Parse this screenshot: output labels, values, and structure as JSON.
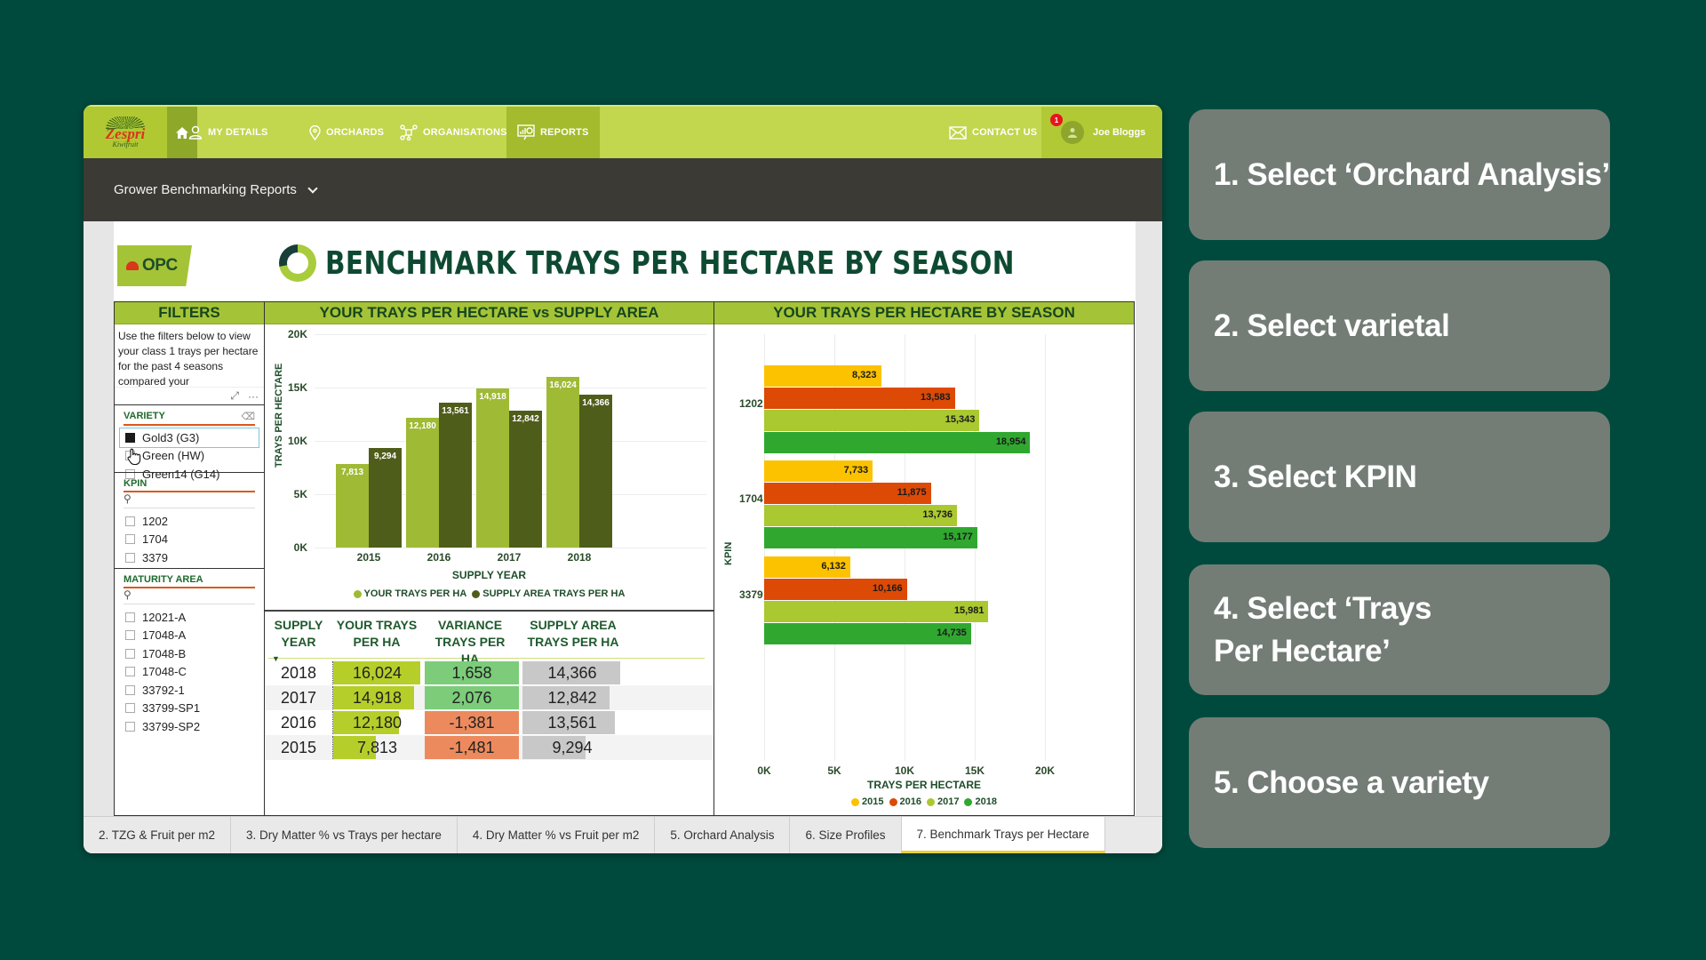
{
  "nav": {
    "logo_text": "Zespri",
    "logo_sub": "Kiwifruit",
    "items": [
      {
        "label": "MY DETAILS",
        "icon": "user-icon"
      },
      {
        "label": "ORCHARDS",
        "icon": "map-pin-icon"
      },
      {
        "label": "ORGANISATIONS",
        "icon": "network-icon"
      },
      {
        "label": "REPORTS",
        "icon": "report-chart-icon",
        "active": true
      }
    ],
    "contact_label": "CONTACT US",
    "user_name": "Joe Bloggs",
    "notification_count": "1"
  },
  "subheader": {
    "title": "Grower Benchmarking Reports"
  },
  "report": {
    "logo_text": "OPC",
    "title": "BENCHMARK TRAYS PER HECTARE BY SEASON",
    "filters": {
      "heading": "FILTERS",
      "description": "Use the filters below to view your class 1 trays per hectare for the past 4 seasons compared your",
      "variety": {
        "title": "VARIETY",
        "options": [
          {
            "label": "Gold3 (G3)",
            "checked": true
          },
          {
            "label": "Green (HW)",
            "checked": false
          },
          {
            "label": "Green14 (G14)",
            "checked": false
          }
        ]
      },
      "kpin": {
        "title": "KPIN",
        "options": [
          "1202",
          "1704",
          "3379"
        ]
      },
      "maturity_area": {
        "title": "MATURITY AREA",
        "options": [
          "12021-A",
          "17048-A",
          "17048-B",
          "17048-C",
          "33792-1",
          "33799-SP1",
          "33799-SP2"
        ]
      }
    },
    "mid_heading": "YOUR TRAYS PER HECTARE vs SUPPLY AREA",
    "right_heading": "YOUR TRAYS PER HECTARE BY SEASON",
    "table": {
      "headers": [
        "SUPPLY YEAR",
        "YOUR TRAYS PER HA",
        "VARIANCE TRAYS PER HA",
        "SUPPLY AREA TRAYS PER HA"
      ],
      "rows": [
        {
          "year": "2018",
          "yours": "16,024",
          "variance": "1,658",
          "supply": "14,366"
        },
        {
          "year": "2017",
          "yours": "14,918",
          "variance": "2,076",
          "supply": "12,842"
        },
        {
          "year": "2016",
          "yours": "12,180",
          "variance": "-1,381",
          "supply": "13,561"
        },
        {
          "year": "2015",
          "yours": "7,813",
          "variance": "-1,481",
          "supply": "9,294"
        }
      ]
    }
  },
  "chart_data": [
    {
      "type": "bar",
      "title": "YOUR TRAYS PER HECTARE vs SUPPLY AREA",
      "categories": [
        "2015",
        "2016",
        "2017",
        "2018"
      ],
      "series": [
        {
          "name": "YOUR TRAYS PER HA",
          "color": "#9fba35",
          "values": [
            7813,
            12180,
            14918,
            16024
          ],
          "labels": [
            "7,813",
            "12,180",
            "14,918",
            "16,024"
          ]
        },
        {
          "name": "SUPPLY AREA TRAYS PER HA",
          "color": "#4f5d1a",
          "values": [
            9294,
            13561,
            12842,
            14366
          ],
          "labels": [
            "9,294",
            "13,561",
            "12,842",
            "14,366"
          ]
        }
      ],
      "xlabel": "SUPPLY YEAR",
      "ylabel": "TRAYS PER HECTARE",
      "yticks": [
        "0K",
        "5K",
        "10K",
        "15K",
        "20K"
      ],
      "ylim": [
        0,
        20000
      ],
      "legend_position": "bottom"
    },
    {
      "type": "bar",
      "orientation": "horizontal",
      "title": "YOUR TRAYS PER HECTARE BY SEASON",
      "categories": [
        "1202",
        "1704",
        "3379"
      ],
      "series": [
        {
          "name": "2015",
          "color": "#fcc200",
          "values": [
            8323,
            7733,
            6132
          ],
          "labels": [
            "8,323",
            "7,733",
            "6,132"
          ]
        },
        {
          "name": "2016",
          "color": "#dc4a06",
          "values": [
            13583,
            11875,
            10166
          ],
          "labels": [
            "13,583",
            "11,875",
            "10,166"
          ]
        },
        {
          "name": "2017",
          "color": "#aac830",
          "values": [
            15343,
            13736,
            15981
          ],
          "labels": [
            "15,343",
            "13,736",
            "15,981"
          ]
        },
        {
          "name": "2018",
          "color": "#30a830",
          "values": [
            18954,
            15177,
            14735
          ],
          "labels": [
            "18,954",
            "15,177",
            "14,735"
          ]
        }
      ],
      "xlabel": "TRAYS PER HECTARE",
      "ylabel": "KPIN",
      "xticks": [
        "0K",
        "5K",
        "10K",
        "15K",
        "20K"
      ],
      "xlim": [
        0,
        20000
      ],
      "legend_position": "bottom"
    }
  ],
  "tabs": [
    {
      "label": "2. TZG & Fruit per m2"
    },
    {
      "label": "3. Dry Matter % vs Trays per hectare"
    },
    {
      "label": "4. Dry Matter % vs Fruit per m2"
    },
    {
      "label": "5. Orchard Analysis"
    },
    {
      "label": "6. Size Profiles"
    },
    {
      "label": "7. Benchmark Trays per Hectare",
      "active": true
    }
  ],
  "instructions": [
    "1. Select ‘Orchard Analysis’",
    "2. Select varietal",
    "3. Select KPIN",
    "4. Select ‘Trays Per Hectare’",
    "5. Choose a variety"
  ],
  "colors": {
    "background": "#004a3d",
    "nav": "#c2d64e",
    "header_dark": "#3b3a35",
    "panel_head": "#a5c336",
    "variance_positive": "#7ccc7a",
    "variance_negative": "#ec8a5e",
    "yours_fill": "#b6ce2a",
    "supply_fill": "#c8c8c8",
    "card": "#737d76"
  }
}
